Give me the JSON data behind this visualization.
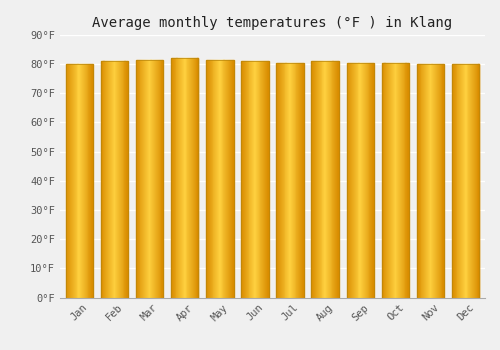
{
  "title": "Average monthly temperatures (°F ) in Klang",
  "months": [
    "Jan",
    "Feb",
    "Mar",
    "Apr",
    "May",
    "Jun",
    "Jul",
    "Aug",
    "Sep",
    "Oct",
    "Nov",
    "Dec"
  ],
  "values": [
    80,
    81,
    81.5,
    82,
    81.5,
    81,
    80.5,
    81,
    80.5,
    80.5,
    80,
    80
  ],
  "ylim": [
    0,
    90
  ],
  "yticks": [
    0,
    10,
    20,
    30,
    40,
    50,
    60,
    70,
    80,
    90
  ],
  "ytick_labels": [
    "0°F",
    "10°F",
    "20°F",
    "30°F",
    "40°F",
    "50°F",
    "60°F",
    "70°F",
    "80°F",
    "90°F"
  ],
  "bar_color": "#FFA500",
  "bar_gradient_light": "#FFD070",
  "bar_gradient_dark": "#E08000",
  "bar_edge_color": "#B8860B",
  "background_color": "#f0f0f0",
  "grid_color": "#ffffff",
  "title_fontsize": 10,
  "tick_fontsize": 7.5,
  "font_family": "monospace"
}
